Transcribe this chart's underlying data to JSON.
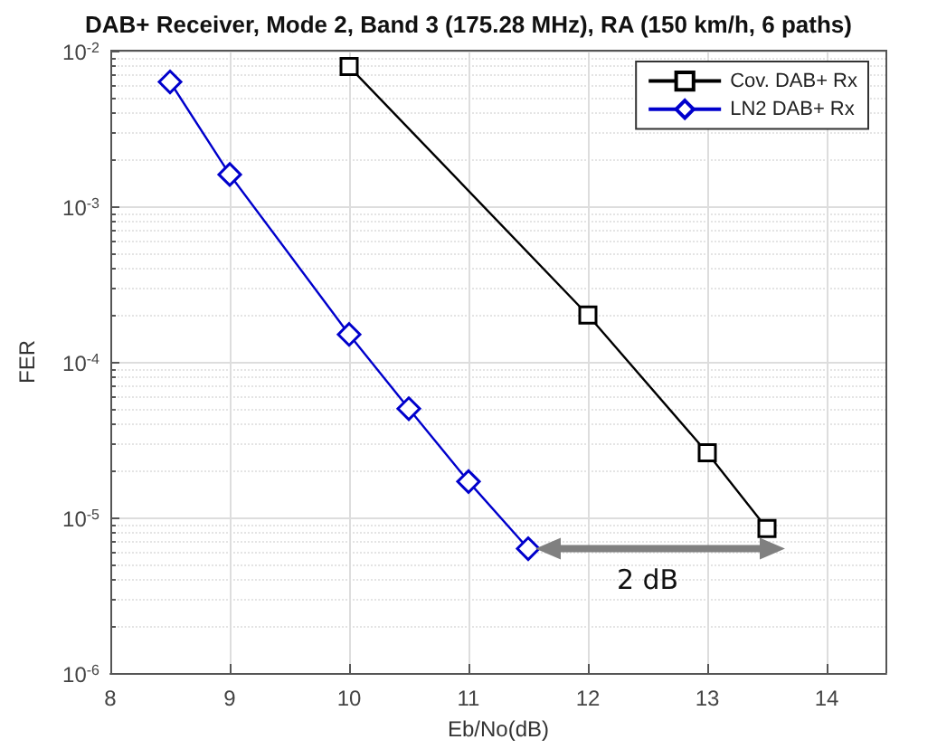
{
  "chart_data": {
    "type": "line",
    "title": "DAB+ Receiver, Mode 2, Band 3 (175.28 MHz), RA (150 km/h, 6 paths)",
    "xlabel": "Eb/No(dB)",
    "ylabel": "FER",
    "series": [
      {
        "name": "Cov. DAB+ Rx",
        "color": "#000000",
        "marker": "square",
        "x": [
          10,
          12,
          13,
          13.5
        ],
        "values": [
          0.0079,
          0.0002,
          2.6e-05,
          8.5e-06
        ]
      },
      {
        "name": "LN2 DAB+ Rx",
        "color": "#0000cc",
        "marker": "diamond",
        "x": [
          8.5,
          9,
          10,
          10.5,
          11,
          11.5
        ],
        "values": [
          0.0063,
          0.0016,
          0.00015,
          5e-05,
          1.7e-05,
          6.3e-06
        ]
      }
    ],
    "xlim": [
      8,
      14.5
    ],
    "xticks": [
      8,
      9,
      10,
      11,
      12,
      13,
      14
    ],
    "ylim": [
      1e-06,
      0.01
    ],
    "yticks": [
      {
        "value": 1e-06,
        "label": "10$^{-6}$"
      },
      {
        "value": 1e-05,
        "label": "10$^{-5}$"
      },
      {
        "value": 0.0001,
        "label": "10$^{-4}$"
      },
      {
        "value": 0.001,
        "label": "10$^{-3}$"
      },
      {
        "value": 0.01,
        "label": "10$^{-2}$"
      }
    ],
    "log": "y",
    "grid": true,
    "legend": "top right",
    "annotations": [
      "2 dB"
    ]
  }
}
